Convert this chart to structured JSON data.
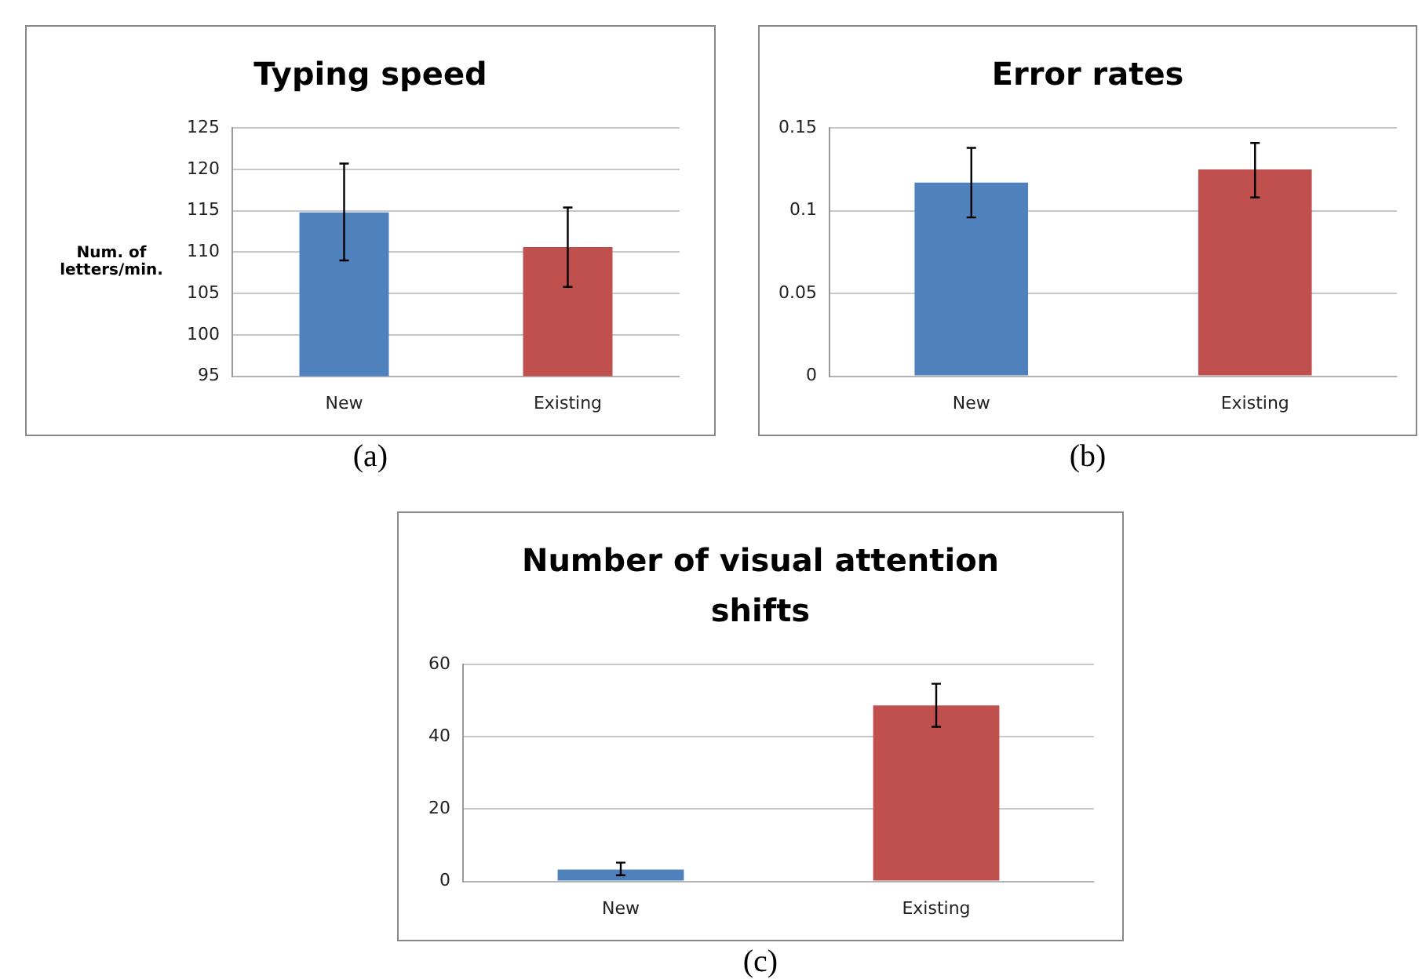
{
  "chart_data": [
    {
      "type": "bar",
      "title": "Typing speed",
      "ylabel": "Num. of letters/min.",
      "categories": [
        "New",
        "Existing"
      ],
      "values": [
        114.8,
        110.6
      ],
      "colors": [
        "#4f81bd",
        "#c0504d"
      ],
      "errors": [
        [
          109,
          120.7
        ],
        [
          105.8,
          115.4
        ]
      ],
      "ylim": [
        95,
        125
      ],
      "yticks": [
        95,
        100,
        105,
        110,
        115,
        120,
        125
      ],
      "grid": "y",
      "annotations": [
        "(a)"
      ]
    },
    {
      "type": "bar",
      "title": "Error rates",
      "categories": [
        "New",
        "Existing"
      ],
      "values": [
        0.117,
        0.125
      ],
      "colors": [
        "#4f81bd",
        "#c0504d"
      ],
      "errors": [
        [
          0.096,
          0.138
        ],
        [
          0.108,
          0.141
        ]
      ],
      "ylim": [
        0,
        0.15
      ],
      "yticks": [
        0,
        0.05,
        0.1,
        0.15
      ],
      "grid": "y",
      "annotations": [
        "(b)"
      ]
    },
    {
      "type": "bar",
      "title": "Number of visual attention shifts",
      "categories": [
        "New",
        "Existing"
      ],
      "values": [
        3.3,
        48.7
      ],
      "colors": [
        "#4f81bd",
        "#c0504d"
      ],
      "errors": [
        [
          1.7,
          5.2
        ],
        [
          42.8,
          54.7
        ]
      ],
      "ylim": [
        0,
        60
      ],
      "yticks": [
        0,
        20,
        40,
        60
      ],
      "grid": "y",
      "annotations": [
        "(c)"
      ]
    }
  ]
}
